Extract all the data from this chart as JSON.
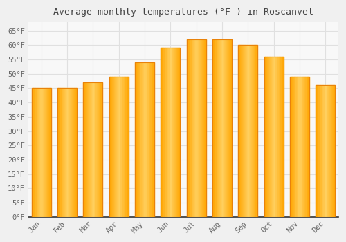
{
  "title": "Average monthly temperatures (°F ) in Roscanvel",
  "months": [
    "Jan",
    "Feb",
    "Mar",
    "Apr",
    "May",
    "Jun",
    "Jul",
    "Aug",
    "Sep",
    "Oct",
    "Nov",
    "Dec"
  ],
  "values": [
    45,
    45,
    47,
    49,
    54,
    59,
    62,
    62,
    60,
    56,
    49,
    46
  ],
  "bar_color_main": "#FFA500",
  "bar_color_light": "#FFD060",
  "bar_color_edge": "#E8820A",
  "background_color": "#F0F0F0",
  "plot_bg_color": "#F8F8F8",
  "grid_color": "#E0E0E0",
  "title_color": "#444444",
  "tick_color": "#666666",
  "spine_color": "#333333",
  "ylim": [
    0,
    68
  ],
  "ytick_step": 5,
  "title_fontsize": 9.5,
  "tick_fontsize": 7.5,
  "font_family": "monospace"
}
